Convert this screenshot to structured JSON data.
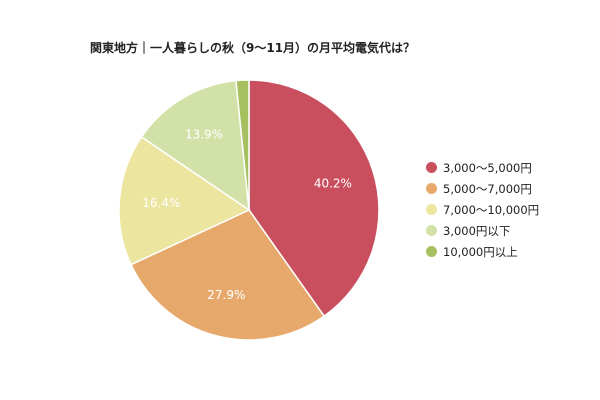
{
  "chart_data": {
    "type": "pie",
    "title": "関東地方｜一人暮らしの秋（9〜11月）の月平均電気代は？",
    "categories": [
      "3,000〜5,000円",
      "5,000〜7,000円",
      "7,000〜10,000円",
      "3,000円以下",
      "10,000円以上"
    ],
    "values": [
      40.2,
      27.9,
      16.4,
      13.9,
      1.6
    ],
    "data_labels": [
      "40.2%",
      "27.9%",
      "16.4%",
      "13.9%",
      ""
    ],
    "colors": [
      "#c94f5f",
      "#e6a96b",
      "#ece59f",
      "#d2e1a8",
      "#a6c060"
    ],
    "label_colors": [
      "#ffffff",
      "#ffffff",
      "#ffffff",
      "#ffffff",
      "#ffffff"
    ],
    "legend_position": "right",
    "start_angle": "top",
    "direction": "clockwise"
  }
}
